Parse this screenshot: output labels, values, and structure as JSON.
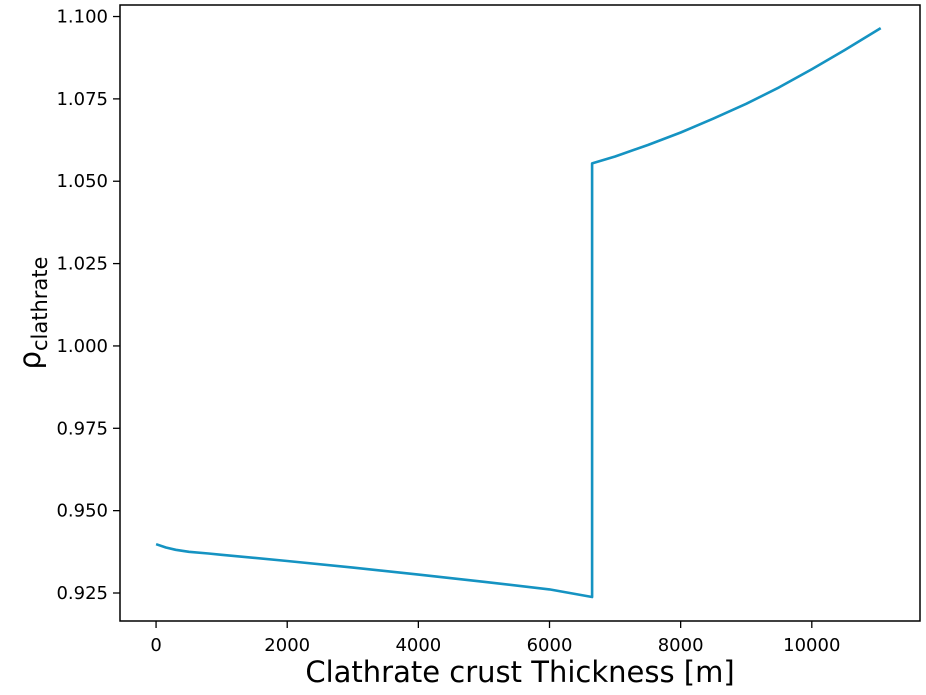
{
  "chart_data": {
    "type": "line",
    "title": "",
    "xlabel": "Clathrate crust Thickness [m]",
    "ylabel_base": "ρ",
    "ylabel_sub": "clathrate",
    "xlim": [
      -550,
      11650
    ],
    "ylim": [
      0.9165,
      1.1035
    ],
    "xticks": [
      0,
      2000,
      4000,
      6000,
      8000,
      10000
    ],
    "xtick_labels": [
      "0",
      "2000",
      "4000",
      "6000",
      "8000",
      "10000"
    ],
    "yticks": [
      0.925,
      0.95,
      0.975,
      1.0,
      1.025,
      1.05,
      1.075,
      1.1
    ],
    "ytick_labels": [
      "0.925",
      "0.950",
      "0.975",
      "1.000",
      "1.025",
      "1.050",
      "1.075",
      "1.100"
    ],
    "grid": false,
    "series": [
      {
        "color": "#1593c2",
        "x": [
          0,
          150,
          300,
          500,
          800,
          1000,
          2000,
          3000,
          4000,
          5000,
          6000,
          6650,
          6650,
          7000,
          7500,
          8000,
          8500,
          9000,
          9500,
          10000,
          10500,
          11050
        ],
        "y": [
          0.9398,
          0.9388,
          0.9381,
          0.9375,
          0.937,
          0.9366,
          0.9347,
          0.9327,
          0.9306,
          0.9284,
          0.9261,
          0.9238,
          1.0554,
          1.0575,
          1.061,
          1.0648,
          1.069,
          1.0735,
          1.0785,
          1.084,
          1.0898,
          1.0965
        ]
      }
    ]
  }
}
